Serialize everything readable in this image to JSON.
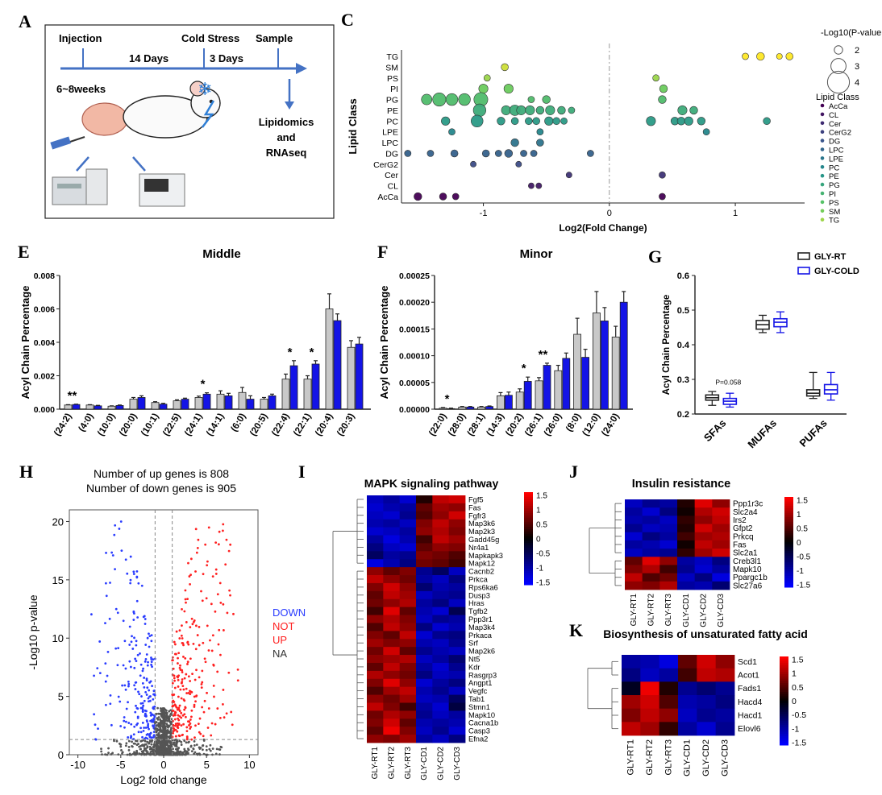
{
  "panel_letters": {
    "A": "A",
    "C": "C",
    "E": "E",
    "F": "F",
    "G": "G",
    "H": "H",
    "I": "I",
    "J": "J",
    "K": "K"
  },
  "panel_A": {
    "injection": "Injection",
    "cold": "Cold Stress",
    "sample": "Sample",
    "days14": "14 Days",
    "days3": "3 Days",
    "weeks": "6~8weeks",
    "omics": [
      "Lipidomics",
      "and",
      "RNAseq"
    ]
  },
  "colors": {
    "rt": "#c8c8c8",
    "cold": "#1414e6",
    "up": "#ff2020",
    "down": "#2a3cff",
    "not": "#555555"
  },
  "chart_data": [
    {
      "id": "C",
      "type": "scatter",
      "title": "",
      "xlabel": "Log2(Fold Change)",
      "ylabel": "Lipid Class",
      "xlim": [
        -1.65,
        1.55
      ],
      "categories": [
        "TG",
        "SM",
        "PS",
        "PI",
        "PG",
        "PE",
        "PC",
        "LPE",
        "LPC",
        "DG",
        "CerG2",
        "Cer",
        "CL",
        "AcCa"
      ],
      "xticks": [
        -1,
        0,
        1
      ],
      "size_legend_title": "-Log10(P-value",
      "size_legend": [
        2,
        3,
        4
      ],
      "class_legend_title": "Lipid Class",
      "class_legend": [
        "AcCa",
        "CL",
        "Cer",
        "CerG2",
        "DG",
        "LPC",
        "LPE",
        "PC",
        "PE",
        "PG",
        "PI",
        "PS",
        "SM",
        "TG"
      ],
      "points": {
        "TG": [
          [
            1.08,
            2.2
          ],
          [
            1.2,
            2.4
          ],
          [
            1.35,
            2.1
          ],
          [
            1.43,
            2.3
          ]
        ],
        "SM": [
          [
            -0.83,
            2.3
          ]
        ],
        "PS": [
          [
            -0.97,
            2.2
          ],
          [
            0.37,
            2.2
          ]
        ],
        "PI": [
          [
            -1.0,
            2.6
          ],
          [
            -0.8,
            2.6
          ],
          [
            0.43,
            2.4
          ]
        ],
        "PG": [
          [
            -1.45,
            2.8
          ],
          [
            -1.35,
            3.2
          ],
          [
            -1.25,
            3.0
          ],
          [
            -1.15,
            3.0
          ],
          [
            -1.02,
            3.3
          ],
          [
            -0.62,
            2.2
          ],
          [
            -0.5,
            2.4
          ],
          [
            0.42,
            2.4
          ]
        ],
        "PE": [
          [
            -1.03,
            3.1
          ],
          [
            -0.82,
            2.6
          ],
          [
            -0.75,
            2.8
          ],
          [
            -0.7,
            2.6
          ],
          [
            -0.63,
            2.6
          ],
          [
            -0.55,
            2.4
          ],
          [
            -0.47,
            2.6
          ],
          [
            -0.38,
            2.4
          ],
          [
            -0.3,
            2.2
          ],
          [
            0.58,
            2.6
          ],
          [
            0.67,
            2.4
          ]
        ],
        "PC": [
          [
            -1.3,
            2.5
          ],
          [
            -1.05,
            3.0
          ],
          [
            -0.86,
            2.4
          ],
          [
            -0.75,
            2.3
          ],
          [
            -0.64,
            2.3
          ],
          [
            -0.58,
            2.3
          ],
          [
            -0.48,
            2.5
          ],
          [
            -0.42,
            2.3
          ],
          [
            -0.36,
            2.2
          ],
          [
            0.33,
            2.6
          ],
          [
            0.52,
            2.4
          ],
          [
            0.57,
            2.4
          ],
          [
            0.63,
            2.5
          ],
          [
            0.73,
            2.4
          ],
          [
            1.25,
            2.3
          ]
        ],
        "LPE": [
          [
            -1.25,
            2.2
          ],
          [
            -0.55,
            2.2
          ],
          [
            0.77,
            2.2
          ]
        ],
        "LPC": [
          [
            -0.75,
            2.4
          ],
          [
            -0.55,
            2.3
          ]
        ],
        "DG": [
          [
            -1.6,
            2.2
          ],
          [
            -1.42,
            2.2
          ],
          [
            -1.23,
            2.3
          ],
          [
            -0.98,
            2.3
          ],
          [
            -0.88,
            2.2
          ],
          [
            -0.8,
            2.4
          ],
          [
            -0.68,
            2.2
          ],
          [
            -0.6,
            2.2
          ],
          [
            -0.15,
            2.2
          ]
        ],
        "CerG2": [
          [
            -1.08,
            2.1
          ],
          [
            -0.72,
            2.1
          ]
        ],
        "Cer": [
          [
            -0.32,
            2.1
          ],
          [
            0.42,
            2.2
          ]
        ],
        "CL": [
          [
            -0.62,
            2.1
          ],
          [
            -0.56,
            2.1
          ]
        ],
        "AcCa": [
          [
            -1.52,
            2.4
          ],
          [
            -1.32,
            2.3
          ],
          [
            -1.22,
            2.2
          ],
          [
            0.42,
            2.2
          ]
        ]
      }
    },
    {
      "id": "E",
      "type": "bar",
      "title": "Middle",
      "ylabel": "Acyl Chain Percentage",
      "ylim": [
        0,
        0.008
      ],
      "yticks": [
        "0.000",
        "0.002",
        "0.004",
        "0.006",
        "0.008"
      ],
      "categories": [
        "(24:2)",
        "(4:0)",
        "(10:0)",
        "(20:0)",
        "(10:1)",
        "(22:5)",
        "(24:1)",
        "(14:1)",
        "(6:0)",
        "(20:5)",
        "(22:4)",
        "(22:1)",
        "(20:4)",
        "(20:3)"
      ],
      "series": [
        {
          "name": "GLY-RT",
          "values": [
            0.00025,
            0.00025,
            0.00018,
            0.0006,
            0.0004,
            0.0005,
            0.0007,
            0.0009,
            0.001,
            0.0006,
            0.0018,
            0.0018,
            0.006,
            0.0037
          ]
        },
        {
          "name": "GLY-COLD",
          "values": [
            0.00028,
            0.0002,
            0.00022,
            0.0007,
            0.0003,
            0.0006,
            0.0009,
            0.0008,
            0.0006,
            0.0008,
            0.0026,
            0.0027,
            0.0053,
            0.0039
          ]
        }
      ],
      "errors": [
        [
          2e-05,
          2e-05,
          2e-05,
          0.0001,
          5e-05,
          6e-05,
          8e-05,
          0.0002,
          0.0003,
          0.0001,
          0.0003,
          0.0002,
          0.0009,
          0.0004
        ],
        [
          2e-05,
          3e-05,
          3e-05,
          0.0001,
          5e-05,
          6e-05,
          8e-05,
          0.00015,
          0.0002,
          0.0001,
          0.0003,
          0.0002,
          0.0004,
          0.0004
        ]
      ],
      "significance": [
        "**",
        "",
        "",
        "",
        "",
        "",
        "*",
        "",
        "",
        "",
        "*",
        "*",
        "",
        ""
      ]
    },
    {
      "id": "F",
      "type": "bar",
      "title": "Minor",
      "ylabel": "Acyl Chain Percentage",
      "ylim": [
        0,
        0.00025
      ],
      "yticks": [
        "0.00000",
        "0.00005",
        "0.00010",
        "0.00015",
        "0.00020",
        "0.00025"
      ],
      "categories": [
        "(22:0)",
        "(28:0)",
        "(28:1)",
        "(14:3)",
        "(20:2)",
        "(26:1)",
        "(26:0)",
        "(8:0)",
        "(12:0)",
        "(24:0)"
      ],
      "series": [
        {
          "name": "GLY-RT",
          "values": [
            2e-06,
            4e-06,
            4e-06,
            2.5e-05,
            3.2e-05,
            5.3e-05,
            7.2e-05,
            0.00014,
            0.00018,
            0.000135
          ]
        },
        {
          "name": "GLY-COLD",
          "values": [
            1e-06,
            4e-06,
            5e-06,
            2.6e-05,
            5.2e-05,
            8.2e-05,
            9.5e-05,
            9.7e-05,
            0.000165,
            0.0002
          ]
        }
      ],
      "errors": [
        [
          1e-06,
          1e-06,
          1e-06,
          6e-06,
          6e-06,
          6e-06,
          1e-05,
          3e-05,
          4e-05,
          2e-05
        ],
        [
          1e-06,
          1e-06,
          1e-06,
          6e-06,
          8e-06,
          4e-06,
          1e-05,
          1.5e-05,
          2.5e-05,
          2e-05
        ]
      ],
      "significance": [
        "*",
        "",
        "",
        "",
        "*",
        "**",
        "",
        "",
        "",
        ""
      ]
    },
    {
      "id": "G",
      "type": "box",
      "ylabel": "Acyl Chain Percentage",
      "ylim": [
        0.2,
        0.6
      ],
      "yticks": [
        "0.2",
        "0.3",
        "0.4",
        "0.5",
        "0.6"
      ],
      "categories": [
        "SFAs",
        "MUFAs",
        "PUFAs"
      ],
      "legend": [
        "GLY-RT",
        "GLY-COLD"
      ],
      "pvalue": "P=0.058",
      "boxes": [
        [
          [
            0.225,
            0.24,
            0.247,
            0.255,
            0.265
          ],
          [
            0.22,
            0.228,
            0.237,
            0.245,
            0.26
          ]
        ],
        [
          [
            0.435,
            0.445,
            0.458,
            0.47,
            0.485
          ],
          [
            0.435,
            0.452,
            0.465,
            0.475,
            0.495
          ]
        ],
        [
          [
            0.245,
            0.252,
            0.26,
            0.27,
            0.32
          ],
          [
            0.24,
            0.258,
            0.27,
            0.285,
            0.32
          ]
        ]
      ]
    },
    {
      "id": "H",
      "type": "scatter",
      "xlabel": "Log2 fold change",
      "ylabel": "-Log10 p-value",
      "xlim": [
        -11,
        11
      ],
      "ylim": [
        0,
        21
      ],
      "xticks": [
        "-10",
        "-5",
        "0",
        "5",
        "10"
      ],
      "yticks": [
        "0",
        "5",
        "10",
        "15",
        "20"
      ],
      "annotation": [
        "Number of up genes is 808",
        "Number of down genes is 905"
      ],
      "legend": [
        "DOWN",
        "NOT",
        "UP",
        "NA"
      ],
      "thresholds": {
        "fc": 1,
        "p": 1.3
      }
    },
    {
      "id": "I",
      "type": "heatmap",
      "title": "MAPK signaling pathway",
      "columns": [
        "GLY-RT1",
        "GLY-RT2",
        "GLY-RT3",
        "GLY-CD1",
        "GLY-CD2",
        "GLY-CD3"
      ],
      "rows": [
        "Fgf5",
        "Fas",
        "Fgfr3",
        "Map3k6",
        "Map2k3",
        "Gadd45g",
        "Nr4a1",
        "Mapkapk3",
        "Mapk12",
        "Cacnb2",
        "Prkca",
        "Rps6ka6",
        "Dusp3",
        "Hras",
        "Tgfb2",
        "Ppp3r1",
        "Map3k4",
        "Prkaca",
        "Srf",
        "Map2k6",
        "Nt5",
        "Kdr",
        "Rasgrp3",
        "Angpt1",
        "Vegfc",
        "Tab1",
        "Stmn1",
        "Mapk10",
        "Cacna1b",
        "Casp3",
        "Efna2"
      ],
      "legend": [
        "1.5",
        "1",
        "0.5",
        "0",
        "-0.5",
        "-1",
        "-1.5"
      ],
      "values": [
        [
          -1.2,
          -1.0,
          -1.3,
          0.2,
          1.2,
          1.3
        ],
        [
          -1.3,
          -1.1,
          -1.0,
          0.6,
          1.0,
          0.9
        ],
        [
          -1.2,
          -1.3,
          -0.9,
          0.5,
          0.9,
          1.3
        ],
        [
          -1.1,
          -1.0,
          -1.2,
          0.8,
          1.2,
          0.9
        ],
        [
          -1.3,
          -1.2,
          -1.0,
          0.9,
          1.1,
          0.8
        ],
        [
          -1.0,
          -1.4,
          -1.1,
          0.4,
          1.2,
          1.0
        ],
        [
          -0.8,
          -1.2,
          -1.3,
          0.6,
          0.9,
          0.8
        ],
        [
          -0.6,
          -1.0,
          -0.9,
          0.8,
          0.7,
          0.5
        ],
        [
          -1.4,
          -1.1,
          -0.8,
          0.7,
          0.6,
          0.4
        ],
        [
          0.9,
          0.6,
          0.8,
          -0.9,
          -0.6,
          -1.2
        ],
        [
          1.2,
          0.9,
          0.7,
          -1.0,
          -1.2,
          -0.8
        ],
        [
          0.8,
          1.3,
          0.9,
          -0.7,
          -1.1,
          -1.0
        ],
        [
          0.6,
          1.2,
          1.0,
          -1.2,
          -1.0,
          -0.9
        ],
        [
          0.7,
          0.9,
          1.1,
          -1.0,
          -0.8,
          -1.2
        ],
        [
          0.4,
          1.4,
          0.6,
          -1.1,
          -1.3,
          -0.5
        ],
        [
          0.9,
          1.1,
          0.8,
          -1.2,
          -0.9,
          -1.0
        ],
        [
          0.5,
          1.2,
          0.9,
          -0.8,
          -1.3,
          -1.1
        ],
        [
          0.8,
          0.6,
          1.2,
          -1.3,
          -0.9,
          -0.8
        ],
        [
          1.0,
          0.8,
          0.9,
          -1.1,
          -1.2,
          -0.9
        ],
        [
          0.7,
          1.3,
          0.6,
          -0.9,
          -1.1,
          -1.2
        ],
        [
          0.9,
          1.0,
          1.1,
          -1.2,
          -1.0,
          -0.7
        ],
        [
          0.6,
          1.2,
          0.8,
          -1.0,
          -1.3,
          -0.9
        ],
        [
          1.1,
          0.9,
          0.7,
          -0.8,
          -1.2,
          -1.1
        ],
        [
          0.8,
          1.4,
          0.9,
          -1.3,
          -1.0,
          -0.8
        ],
        [
          0.5,
          1.0,
          1.2,
          -1.1,
          -0.9,
          -1.2
        ],
        [
          0.9,
          0.7,
          1.0,
          -1.2,
          -1.1,
          -0.6
        ],
        [
          1.2,
          0.8,
          0.4,
          -1.0,
          -1.3,
          -0.4
        ],
        [
          0.7,
          1.1,
          0.9,
          -0.9,
          -1.2,
          -1.0
        ],
        [
          0.8,
          1.3,
          0.6,
          -1.1,
          -1.0,
          -1.1
        ],
        [
          0.6,
          1.5,
          0.8,
          -1.2,
          -0.9,
          -1.3
        ],
        [
          0.9,
          0.8,
          1.0,
          -1.0,
          -1.2,
          -0.8
        ]
      ]
    },
    {
      "id": "J",
      "type": "heatmap",
      "title": "Insulin resistance",
      "columns": [
        "GLY-RT1",
        "GLY-RT2",
        "GLY-RT3",
        "GLY-CD1",
        "GLY-CD2",
        "GLY-CD3"
      ],
      "rows": [
        "Ppp1r3c",
        "Slc2a4",
        "Irs2",
        "Gfpt2",
        "Prkcq",
        "Fas",
        "Slc2a1",
        "Creb3l1",
        "Mapk10",
        "Ppargc1b",
        "Slc27a6"
      ],
      "legend": [
        "1.5",
        "1",
        "0.5",
        "0",
        "-0.5",
        "-1",
        "-1.5"
      ],
      "values": [
        [
          -1.2,
          -0.9,
          -1.0,
          0.2,
          1.4,
          0.9
        ],
        [
          -1.0,
          -1.3,
          -0.8,
          0.1,
          1.1,
          1.3
        ],
        [
          -1.1,
          -1.0,
          -1.2,
          0.3,
          0.9,
          1.2
        ],
        [
          -0.9,
          -1.2,
          -1.1,
          0.2,
          1.3,
          1.0
        ],
        [
          -1.3,
          -0.8,
          -1.0,
          0.4,
          1.0,
          1.1
        ],
        [
          -1.0,
          -1.1,
          -1.3,
          0.1,
          1.2,
          1.0
        ],
        [
          -1.2,
          -1.0,
          -0.9,
          0.3,
          1.0,
          1.3
        ],
        [
          0.6,
          1.4,
          0.9,
          -1.0,
          -1.2,
          -0.8
        ],
        [
          0.8,
          1.1,
          0.4,
          -0.9,
          -1.3,
          -1.0
        ],
        [
          1.2,
          0.5,
          0.7,
          -1.2,
          -0.8,
          -1.4
        ],
        [
          0.9,
          0.8,
          1.1,
          -1.0,
          -1.1,
          -0.7
        ]
      ]
    },
    {
      "id": "K",
      "type": "heatmap",
      "title": "Biosynthesis of unsaturated fatty acid",
      "columns": [
        "GLY-RT1",
        "GLY-RT2",
        "GLY-RT3",
        "GLY-CD1",
        "GLY-CD2",
        "GLY-CD3"
      ],
      "rows": [
        "Scd1",
        "Acot1",
        "Fads1",
        "Hacd4",
        "Hacd1",
        "Elovl6"
      ],
      "legend": [
        "1.5",
        "1",
        "0.5",
        "0",
        "-0.5",
        "-1",
        "-1.5"
      ],
      "values": [
        [
          -1.0,
          -1.1,
          -1.4,
          0.6,
          1.3,
          0.9
        ],
        [
          -0.8,
          -1.2,
          -1.0,
          0.4,
          1.2,
          1.1
        ],
        [
          -0.2,
          1.5,
          0.2,
          -0.9,
          -0.7,
          -0.9
        ],
        [
          1.0,
          1.3,
          0.5,
          -1.1,
          -1.0,
          -0.8
        ],
        [
          0.8,
          1.2,
          0.9,
          -1.2,
          -0.9,
          -1.0
        ],
        [
          1.2,
          1.0,
          0.3,
          -1.0,
          -1.3,
          -0.9
        ]
      ]
    }
  ]
}
